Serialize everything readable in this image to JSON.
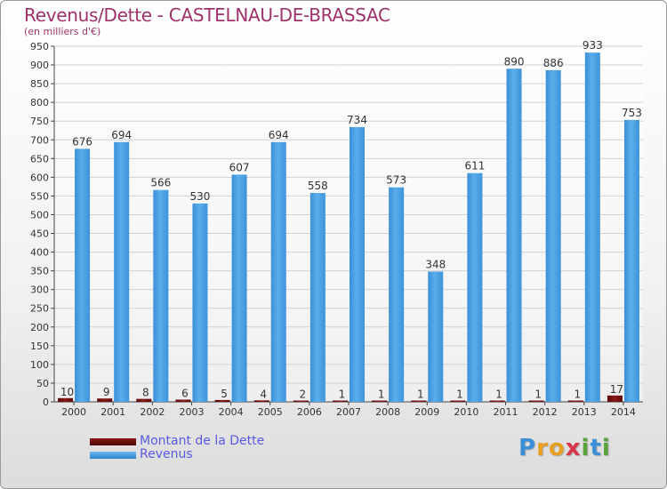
{
  "title": "Revenus/Dette - CASTELNAU-DE-BRASSAC",
  "subtitle": "(en milliers d'€)",
  "legend": [
    {
      "label": "Montant de la Dette",
      "color": "#6b0d0d"
    },
    {
      "label": "Revenus",
      "color": "#4ea3e6"
    }
  ],
  "logo": {
    "text": "Proxiti",
    "letters": [
      {
        "char": "P",
        "color": "#3b8fd6"
      },
      {
        "char": "r",
        "color": "#e8a022"
      },
      {
        "char": "o",
        "color": "#e8a022"
      },
      {
        "char": "x",
        "color": "#d8344a"
      },
      {
        "char": "i",
        "color": "#5aa23c"
      },
      {
        "char": "t",
        "color": "#3b8fd6"
      },
      {
        "char": "i",
        "color": "#5aa23c"
      }
    ]
  },
  "chart_data": {
    "type": "bar",
    "categories": [
      "2000",
      "2001",
      "2002",
      "2003",
      "2004",
      "2005",
      "2006",
      "2007",
      "2008",
      "2009",
      "2010",
      "2011",
      "2012",
      "2013",
      "2014"
    ],
    "series": [
      {
        "name": "Montant de la Dette",
        "color": "#6b0d0d",
        "values": [
          10,
          9,
          8,
          6,
          5,
          4,
          2,
          1,
          1,
          1,
          1,
          1,
          1,
          1,
          17
        ]
      },
      {
        "name": "Revenus",
        "color": "#4ea3e6",
        "values": [
          676,
          694,
          566,
          530,
          607,
          694,
          558,
          734,
          573,
          348,
          611,
          890,
          886,
          933,
          753
        ]
      }
    ],
    "ylim": [
      0,
      950
    ],
    "yticks": [
      0,
      50,
      100,
      150,
      200,
      250,
      300,
      350,
      400,
      450,
      500,
      550,
      600,
      650,
      700,
      750,
      800,
      850,
      900,
      950
    ],
    "grid": true,
    "legend_position": "bottom-left"
  }
}
